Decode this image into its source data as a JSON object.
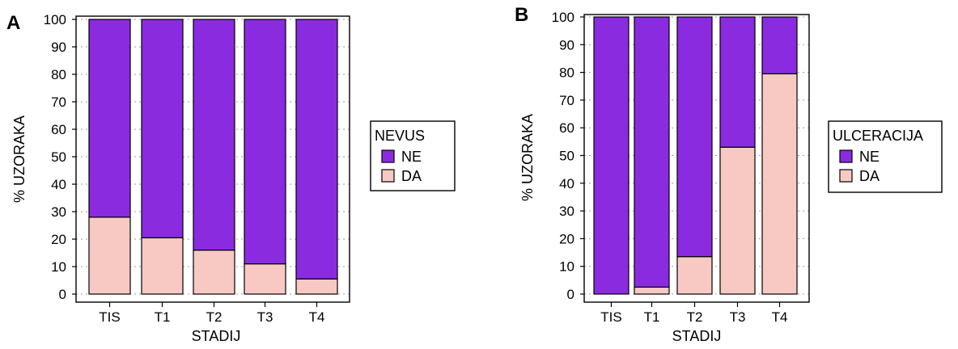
{
  "chart_data": [
    {
      "type": "bar",
      "stacked": true,
      "panel_label": "A",
      "title": "",
      "xlabel": "STADIJ",
      "ylabel": "% UZORAKA",
      "ylim": [
        0,
        100
      ],
      "yticks": [
        0,
        10,
        20,
        30,
        40,
        50,
        60,
        70,
        80,
        90,
        100
      ],
      "grid": "horizontal dotted",
      "legend_position": "right",
      "legend_title": "NEVUS",
      "categories": [
        "TIS",
        "T1",
        "T2",
        "T3",
        "T4"
      ],
      "series": [
        {
          "name": "DA",
          "color": "#f8c9c3",
          "values": [
            28,
            20.5,
            16,
            11,
            5.5
          ]
        },
        {
          "name": "NE",
          "color": "#8b2be0",
          "values": [
            72,
            79.5,
            84,
            89,
            94.5
          ]
        }
      ]
    },
    {
      "type": "bar",
      "stacked": true,
      "panel_label": "B",
      "title": "",
      "xlabel": "STADIJ",
      "ylabel": "% UZORAKA",
      "ylim": [
        0,
        100
      ],
      "yticks": [
        0,
        10,
        20,
        30,
        40,
        50,
        60,
        70,
        80,
        90,
        100
      ],
      "grid": "horizontal dotted",
      "legend_position": "right",
      "legend_title": "ULCERACIJA",
      "categories": [
        "TIS",
        "T1",
        "T2",
        "T3",
        "T4"
      ],
      "series": [
        {
          "name": "DA",
          "color": "#f8c9c3",
          "values": [
            0,
            2.5,
            13.5,
            53,
            79.5
          ]
        },
        {
          "name": "NE",
          "color": "#8b2be0",
          "values": [
            100,
            97.5,
            86.5,
            47,
            20.5
          ]
        }
      ]
    }
  ]
}
